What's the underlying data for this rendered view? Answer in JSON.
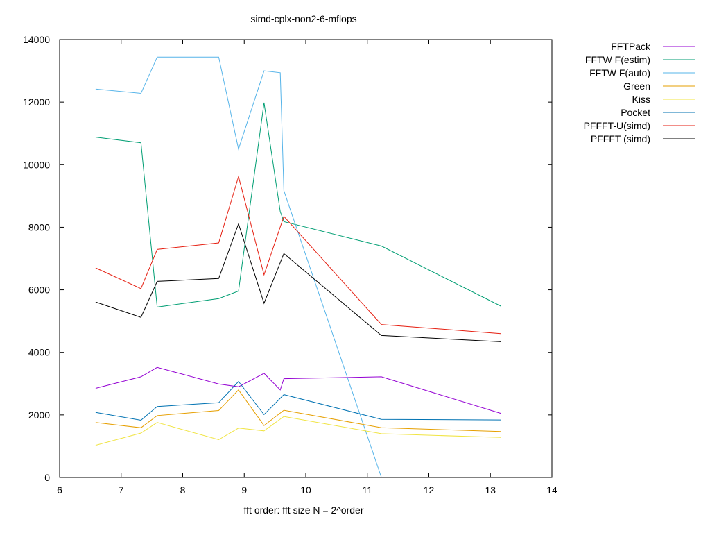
{
  "chart_data": {
    "type": "line",
    "title": "simd-cplx-non2-6-mflops",
    "xlabel": "fft order: fft size N = 2^order",
    "ylabel": "",
    "xlim": [
      6,
      14
    ],
    "ylim": [
      0,
      14000
    ],
    "x_ticks": [
      "6",
      "7",
      "8",
      "9",
      "10",
      "11",
      "12",
      "13",
      "14"
    ],
    "y_ticks": [
      "0",
      "2000",
      "4000",
      "6000",
      "8000",
      "10000",
      "12000",
      "14000"
    ],
    "legend_position": "top-right-outside",
    "grid": false,
    "series": [
      {
        "name": "FFTPack",
        "color": "#9400d3",
        "x": [
          6.585,
          7.322,
          7.585,
          8.585,
          8.907,
          9.322,
          9.585,
          9.644,
          11.229,
          13.17
        ],
        "y": [
          2850,
          3220,
          3520,
          2990,
          2900,
          3330,
          2800,
          3160,
          3220,
          2050
        ]
      },
      {
        "name": "FFTW F(estim)",
        "color": "#009e73",
        "x": [
          6.585,
          7.322,
          7.585,
          8.585,
          8.907,
          9.322,
          9.585,
          9.644,
          11.229,
          13.17
        ],
        "y": [
          10880,
          10700,
          5450,
          5720,
          5960,
          11980,
          8500,
          8180,
          7400,
          5480
        ]
      },
      {
        "name": "FFTW F(auto)",
        "color": "#56b4e9",
        "x": [
          6.585,
          7.322,
          7.585,
          8.585,
          8.907,
          9.322,
          9.585,
          9.644,
          11.229
        ],
        "y": [
          12420,
          12280,
          13440,
          13440,
          10500,
          13000,
          12940,
          9170,
          0
        ]
      },
      {
        "name": "Green",
        "color": "#e69f00",
        "x": [
          6.585,
          7.322,
          7.585,
          8.585,
          8.907,
          9.322,
          9.644,
          11.229,
          13.17
        ],
        "y": [
          1760,
          1590,
          1980,
          2140,
          2800,
          1660,
          2150,
          1590,
          1470
        ]
      },
      {
        "name": "Kiss",
        "color": "#f0e442",
        "x": [
          6.585,
          7.322,
          7.585,
          8.585,
          8.907,
          9.322,
          9.644,
          11.229,
          13.17
        ],
        "y": [
          1030,
          1420,
          1760,
          1210,
          1580,
          1490,
          1950,
          1400,
          1280
        ]
      },
      {
        "name": "Pocket",
        "color": "#0072b2",
        "x": [
          6.585,
          7.322,
          7.585,
          8.585,
          8.907,
          9.322,
          9.644,
          11.229,
          13.17
        ],
        "y": [
          2080,
          1830,
          2270,
          2390,
          3070,
          2010,
          2650,
          1860,
          1840
        ]
      },
      {
        "name": "PFFFT-U(simd)",
        "color": "#e51e10",
        "x": [
          6.585,
          7.322,
          7.585,
          8.585,
          8.907,
          9.322,
          9.644,
          11.229,
          13.17
        ],
        "y": [
          6700,
          6040,
          7290,
          7500,
          9620,
          6480,
          8350,
          4890,
          4600
        ]
      },
      {
        "name": "PFFFT (simd)",
        "color": "#000000",
        "x": [
          6.585,
          7.322,
          7.585,
          8.585,
          8.907,
          9.322,
          9.644,
          11.229,
          13.17
        ],
        "y": [
          5610,
          5120,
          6270,
          6360,
          8110,
          5570,
          7160,
          4540,
          4340
        ]
      }
    ]
  }
}
